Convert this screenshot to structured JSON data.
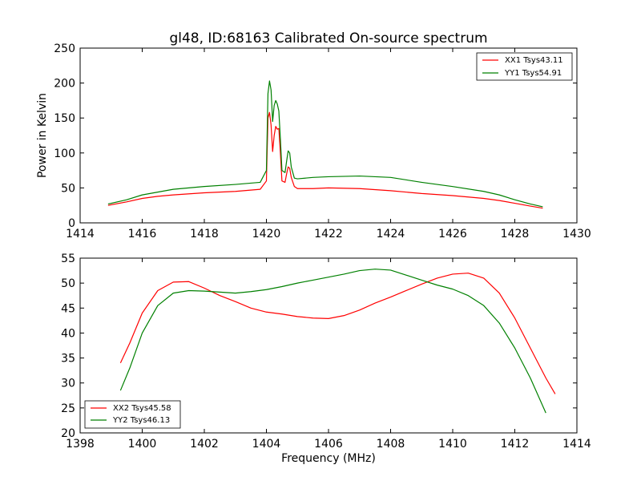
{
  "title": "gl48, ID:68163 Calibrated On-source spectrum",
  "colors": {
    "xx": "#ff0000",
    "yy": "#008000"
  },
  "chart_data": [
    {
      "type": "line",
      "title": "gl48, ID:68163 Calibrated On-source spectrum",
      "xlabel": "",
      "ylabel": "Power in Kelvin",
      "xlim": [
        1414,
        1430
      ],
      "ylim": [
        0,
        250
      ],
      "xticks": [
        1414,
        1416,
        1418,
        1420,
        1422,
        1424,
        1426,
        1428,
        1430
      ],
      "yticks": [
        0,
        50,
        100,
        150,
        200,
        250
      ],
      "grid": false,
      "legend": "top-right",
      "series": [
        {
          "name": "XX1 Tsys43.11",
          "color": "#ff0000",
          "x": [
            1414.9,
            1415.5,
            1416.0,
            1416.5,
            1417.0,
            1418.0,
            1419.0,
            1419.8,
            1420.0,
            1420.05,
            1420.1,
            1420.15,
            1420.2,
            1420.25,
            1420.3,
            1420.35,
            1420.4,
            1420.45,
            1420.5,
            1420.6,
            1420.65,
            1420.7,
            1420.75,
            1420.8,
            1420.9,
            1421.0,
            1421.5,
            1422.0,
            1423.0,
            1424.0,
            1425.0,
            1426.0,
            1427.0,
            1427.5,
            1428.0,
            1428.5,
            1428.9
          ],
          "y": [
            25,
            30,
            35,
            38,
            40,
            43,
            45,
            48,
            60,
            150,
            158,
            140,
            102,
            125,
            138,
            134,
            135,
            100,
            60,
            58,
            70,
            80,
            78,
            65,
            52,
            49,
            49,
            50,
            49,
            46,
            42,
            39,
            35,
            32,
            28,
            24,
            21
          ]
        },
        {
          "name": "YY1 Tsys54.91",
          "color": "#008000",
          "x": [
            1414.9,
            1415.5,
            1416.0,
            1416.5,
            1417.0,
            1418.0,
            1419.0,
            1419.8,
            1420.0,
            1420.05,
            1420.1,
            1420.15,
            1420.2,
            1420.25,
            1420.3,
            1420.35,
            1420.4,
            1420.45,
            1420.5,
            1420.6,
            1420.65,
            1420.7,
            1420.75,
            1420.8,
            1420.9,
            1421.0,
            1421.5,
            1422.0,
            1423.0,
            1424.0,
            1425.0,
            1426.0,
            1427.0,
            1427.5,
            1428.0,
            1428.5,
            1428.9
          ],
          "y": [
            27,
            33,
            40,
            44,
            48,
            52,
            55,
            58,
            75,
            185,
            203,
            190,
            145,
            168,
            175,
            170,
            160,
            120,
            75,
            72,
            88,
            103,
            100,
            80,
            64,
            63,
            65,
            66,
            67,
            65,
            58,
            52,
            45,
            40,
            33,
            27,
            23
          ]
        }
      ]
    },
    {
      "type": "line",
      "title": "",
      "xlabel": "Frequency (MHz)",
      "ylabel": "",
      "xlim": [
        1398,
        1414
      ],
      "ylim": [
        20,
        55
      ],
      "xticks": [
        1398,
        1400,
        1402,
        1404,
        1406,
        1408,
        1410,
        1412,
        1414
      ],
      "yticks": [
        20,
        25,
        30,
        35,
        40,
        45,
        50,
        55
      ],
      "grid": false,
      "legend": "bottom-left",
      "series": [
        {
          "name": "XX2 Tsys45.58",
          "color": "#ff0000",
          "x": [
            1399.3,
            1399.6,
            1400.0,
            1400.5,
            1401.0,
            1401.5,
            1402.0,
            1402.5,
            1403.0,
            1403.5,
            1404.0,
            1404.5,
            1405.0,
            1405.5,
            1406.0,
            1406.5,
            1407.0,
            1407.5,
            1408.0,
            1408.5,
            1409.0,
            1409.5,
            1410.0,
            1410.5,
            1411.0,
            1411.5,
            1412.0,
            1412.5,
            1413.0,
            1413.3
          ],
          "y": [
            34,
            38,
            44,
            48.5,
            50.2,
            50.3,
            49.0,
            47.5,
            46.3,
            45.0,
            44.2,
            43.8,
            43.3,
            43.0,
            42.9,
            43.5,
            44.6,
            46.0,
            47.2,
            48.5,
            49.8,
            51.0,
            51.8,
            52.0,
            51.0,
            48.0,
            43.0,
            37.0,
            31.0,
            27.8
          ]
        },
        {
          "name": "YY2 Tsys46.13",
          "color": "#008000",
          "x": [
            1399.3,
            1399.6,
            1400.0,
            1400.5,
            1401.0,
            1401.5,
            1402.0,
            1402.5,
            1403.0,
            1403.5,
            1404.0,
            1404.5,
            1405.0,
            1405.5,
            1406.0,
            1406.5,
            1407.0,
            1407.5,
            1408.0,
            1408.5,
            1409.0,
            1409.5,
            1410.0,
            1410.5,
            1411.0,
            1411.5,
            1412.0,
            1412.5,
            1413.0
          ],
          "y": [
            28.5,
            33,
            40,
            45.5,
            48.0,
            48.5,
            48.4,
            48.2,
            48.0,
            48.3,
            48.7,
            49.3,
            50.0,
            50.6,
            51.2,
            51.8,
            52.5,
            52.8,
            52.6,
            51.6,
            50.6,
            49.6,
            48.8,
            47.5,
            45.5,
            42.0,
            37.0,
            31.0,
            24.0
          ]
        }
      ]
    }
  ]
}
